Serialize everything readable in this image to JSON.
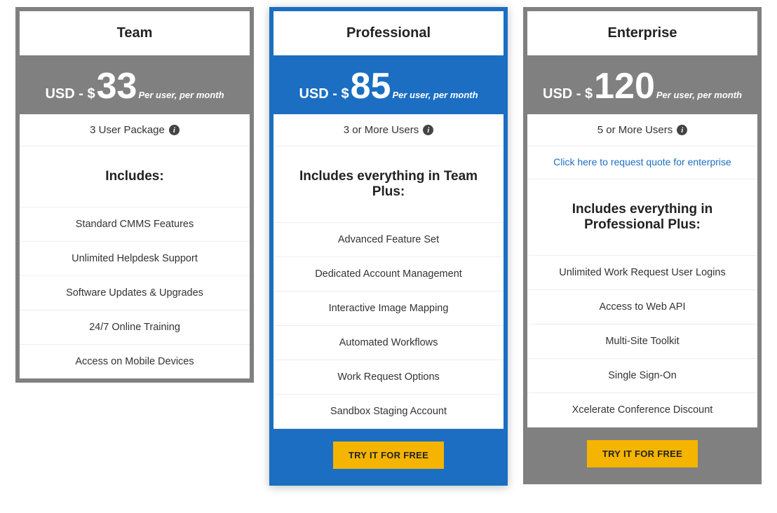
{
  "colors": {
    "gray_border": "#808080",
    "blue_border": "#1b6ec2",
    "gray_band": "#808080",
    "blue_band": "#1b6ec2",
    "cta_bg": "#f5b400",
    "link": "#1b6ec2"
  },
  "plans": [
    {
      "id": "team",
      "title": "Team",
      "border_color": "#808080",
      "price_band_color": "#808080",
      "price_prefix": "USD - $",
      "price_amount": "33",
      "price_suffix": "Per user, per month",
      "user_text": "3 User Package",
      "includes_heading": "Includes:",
      "features": [
        "Standard CMMS Features",
        "Unlimited Helpdesk Support",
        "Software Updates & Upgrades",
        "24/7 Online Training",
        "Access on Mobile Devices"
      ]
    },
    {
      "id": "professional",
      "title": "Professional",
      "border_color": "#1b6ec2",
      "price_band_color": "#1b6ec2",
      "featured": true,
      "price_prefix": "USD - $",
      "price_amount": "85",
      "price_suffix": "Per user, per month",
      "user_text": "3 or More Users",
      "includes_heading": "Includes everything in Team Plus:",
      "features": [
        "Advanced Feature Set",
        "Dedicated Account Management",
        "Interactive Image Mapping",
        "Automated Workflows",
        "Work Request Options",
        "Sandbox Staging Account"
      ],
      "cta_label": "TRY IT FOR FREE",
      "cta_band_color": "#1b6ec2"
    },
    {
      "id": "enterprise",
      "title": "Enterprise",
      "border_color": "#808080",
      "price_band_color": "#808080",
      "price_prefix": "USD - $",
      "price_amount": "120",
      "price_suffix": "Per user, per month",
      "user_text": "5 or More Users",
      "quote_link": "Click here to request quote for enterprise",
      "includes_heading": "Includes everything in Professional Plus:",
      "features": [
        "Unlimited Work Request User Logins",
        "Access to Web API",
        "Multi-Site Toolkit",
        "Single Sign-On",
        "Xcelerate Conference Discount"
      ],
      "cta_label": "TRY IT FOR FREE",
      "cta_band_color": "#808080"
    }
  ]
}
